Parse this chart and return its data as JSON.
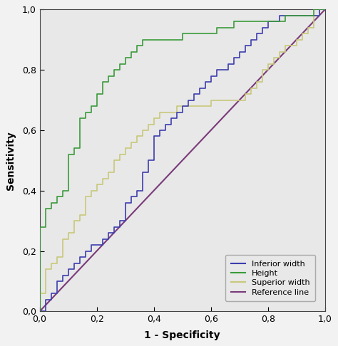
{
  "title": "",
  "xlabel": "1 - Specificity",
  "ylabel": "Sensitivity",
  "xlim": [
    0.0,
    1.0
  ],
  "ylim": [
    0.0,
    1.0
  ],
  "xticks": [
    0.0,
    0.2,
    0.4,
    0.6,
    0.8,
    1.0
  ],
  "yticks": [
    0.0,
    0.2,
    0.4,
    0.6,
    0.8,
    1.0
  ],
  "xtick_labels": [
    "0,0",
    "0,2",
    "0,4",
    "0,6",
    "0,8",
    "1,0"
  ],
  "ytick_labels": [
    "0,0",
    "0,2",
    "0,4",
    "0,6",
    "0,8",
    "1,0"
  ],
  "background_color": "#e8e8e8",
  "fig_color": "#f2f2f2",
  "inferior_width_color": "#3d3daf",
  "height_color": "#3a9a3a",
  "superior_width_color": "#c8c87a",
  "reference_line_color": "#7a3a7a",
  "legend_labels": [
    "Inferior width",
    "Height",
    "Superior width",
    "Reference line"
  ],
  "inferior_width_x": [
    0.0,
    0.02,
    0.04,
    0.06,
    0.08,
    0.1,
    0.12,
    0.14,
    0.16,
    0.18,
    0.2,
    0.22,
    0.24,
    0.26,
    0.28,
    0.3,
    0.32,
    0.34,
    0.36,
    0.38,
    0.4,
    0.42,
    0.44,
    0.46,
    0.48,
    0.5,
    0.52,
    0.54,
    0.56,
    0.58,
    0.6,
    0.62,
    0.64,
    0.66,
    0.68,
    0.7,
    0.72,
    0.74,
    0.76,
    0.78,
    0.8,
    0.82,
    0.84,
    0.86,
    0.88,
    0.9,
    0.92,
    0.94,
    0.96,
    0.98,
    1.0
  ],
  "inferior_width_y": [
    0.0,
    0.04,
    0.06,
    0.1,
    0.12,
    0.14,
    0.16,
    0.18,
    0.2,
    0.22,
    0.22,
    0.24,
    0.26,
    0.28,
    0.3,
    0.36,
    0.38,
    0.4,
    0.46,
    0.5,
    0.58,
    0.6,
    0.62,
    0.64,
    0.66,
    0.68,
    0.7,
    0.72,
    0.74,
    0.76,
    0.78,
    0.8,
    0.8,
    0.82,
    0.84,
    0.86,
    0.88,
    0.9,
    0.92,
    0.94,
    0.96,
    0.96,
    0.98,
    0.98,
    0.98,
    0.98,
    0.98,
    0.98,
    0.98,
    1.0,
    1.0
  ],
  "height_x": [
    0.0,
    0.0,
    0.02,
    0.04,
    0.06,
    0.08,
    0.1,
    0.12,
    0.14,
    0.16,
    0.18,
    0.2,
    0.22,
    0.24,
    0.26,
    0.28,
    0.3,
    0.32,
    0.34,
    0.36,
    0.38,
    0.4,
    0.42,
    0.44,
    0.46,
    0.48,
    0.5,
    0.52,
    0.54,
    0.56,
    0.58,
    0.6,
    0.62,
    0.64,
    0.66,
    0.68,
    0.7,
    0.72,
    0.74,
    0.76,
    0.78,
    0.8,
    0.82,
    0.84,
    0.86,
    0.88,
    0.9,
    0.92,
    0.94,
    0.96,
    0.98,
    1.0
  ],
  "height_y": [
    0.0,
    0.28,
    0.34,
    0.36,
    0.38,
    0.4,
    0.52,
    0.54,
    0.64,
    0.66,
    0.68,
    0.72,
    0.76,
    0.78,
    0.8,
    0.82,
    0.84,
    0.86,
    0.88,
    0.9,
    0.9,
    0.9,
    0.9,
    0.9,
    0.9,
    0.9,
    0.92,
    0.92,
    0.92,
    0.92,
    0.92,
    0.92,
    0.94,
    0.94,
    0.94,
    0.96,
    0.96,
    0.96,
    0.96,
    0.96,
    0.96,
    0.96,
    0.96,
    0.96,
    0.98,
    0.98,
    0.98,
    0.98,
    0.98,
    1.0,
    1.0,
    1.0
  ],
  "superior_width_x": [
    0.0,
    0.02,
    0.04,
    0.06,
    0.08,
    0.1,
    0.12,
    0.14,
    0.16,
    0.18,
    0.2,
    0.22,
    0.24,
    0.26,
    0.28,
    0.3,
    0.32,
    0.34,
    0.36,
    0.38,
    0.4,
    0.42,
    0.44,
    0.46,
    0.48,
    0.5,
    0.52,
    0.54,
    0.56,
    0.58,
    0.6,
    0.62,
    0.64,
    0.66,
    0.68,
    0.7,
    0.72,
    0.74,
    0.76,
    0.78,
    0.8,
    0.82,
    0.84,
    0.86,
    0.88,
    0.9,
    0.92,
    0.94,
    0.96,
    0.98,
    1.0
  ],
  "superior_width_y": [
    0.06,
    0.14,
    0.16,
    0.18,
    0.24,
    0.26,
    0.3,
    0.32,
    0.38,
    0.4,
    0.42,
    0.44,
    0.46,
    0.5,
    0.52,
    0.54,
    0.56,
    0.58,
    0.6,
    0.62,
    0.64,
    0.66,
    0.66,
    0.66,
    0.68,
    0.68,
    0.68,
    0.68,
    0.68,
    0.68,
    0.7,
    0.7,
    0.7,
    0.7,
    0.7,
    0.7,
    0.72,
    0.74,
    0.76,
    0.8,
    0.82,
    0.84,
    0.86,
    0.88,
    0.88,
    0.9,
    0.92,
    0.94,
    0.98,
    1.0,
    1.0
  ]
}
